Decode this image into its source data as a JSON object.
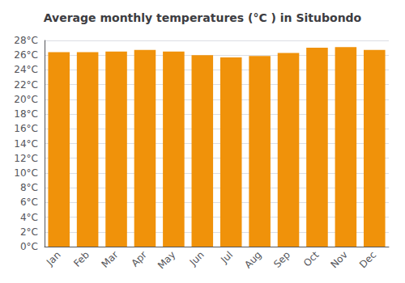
{
  "chart_data": {
    "type": "bar",
    "title": "Average monthly temperatures (°C ) in Situbondo",
    "categories": [
      "Jan",
      "Feb",
      "Mar",
      "Apr",
      "May",
      "Jun",
      "Jul",
      "Aug",
      "Sep",
      "Oct",
      "Nov",
      "Dec"
    ],
    "values": [
      26.4,
      26.4,
      26.5,
      26.7,
      26.5,
      26.0,
      25.7,
      25.9,
      26.3,
      27.0,
      27.1,
      26.7
    ],
    "color": "#F0920A",
    "ylim": [
      0,
      28
    ],
    "yticks": [
      {
        "value": 0,
        "label": "0°C"
      },
      {
        "value": 2,
        "label": "2°C"
      },
      {
        "value": 4,
        "label": "4°C"
      },
      {
        "value": 6,
        "label": "6°C"
      },
      {
        "value": 8,
        "label": "8°C"
      },
      {
        "value": 10,
        "label": "10°C"
      },
      {
        "value": 12,
        "label": "12°C"
      },
      {
        "value": 14,
        "label": "14°C"
      },
      {
        "value": 16,
        "label": "16°C"
      },
      {
        "value": 18,
        "label": "18°C"
      },
      {
        "value": 20,
        "label": "20°C"
      },
      {
        "value": 22,
        "label": "22°C"
      },
      {
        "value": 24,
        "label": "24°C"
      },
      {
        "value": 26,
        "label": "26°C"
      },
      {
        "value": 28,
        "label": "28°C"
      }
    ],
    "grid": true
  }
}
